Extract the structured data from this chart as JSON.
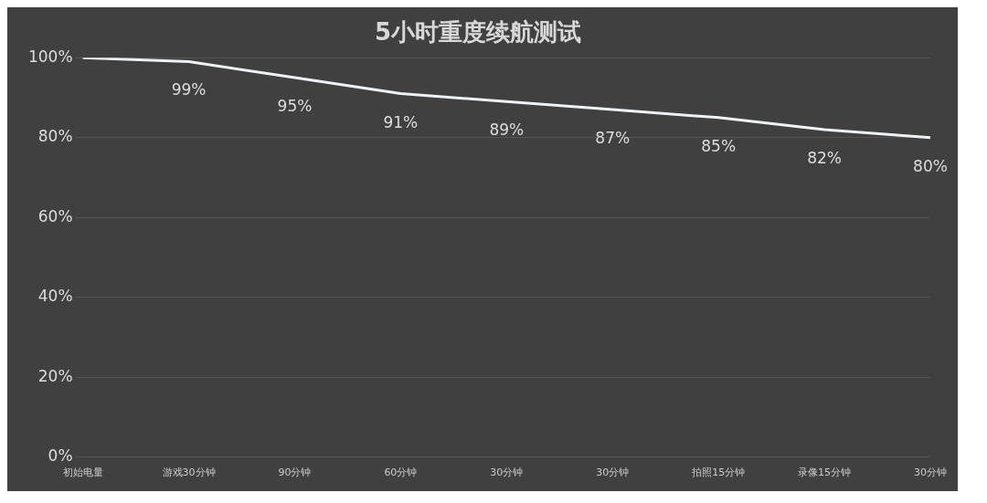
{
  "chart_data": {
    "type": "line",
    "title": "5小时重度续航测试",
    "categories": [
      "初始电量",
      "游戏30分钟",
      "90分钟",
      "60分钟",
      "30分钟",
      "30分钟",
      "拍照15分钟",
      "录像15分钟",
      "30分钟"
    ],
    "series": [
      {
        "color": "#eef3f8",
        "values": [
          100,
          99,
          95,
          91,
          89,
          87,
          85,
          82,
          80
        ],
        "value_labels": [
          null,
          "99%",
          "95%",
          "91%",
          "89%",
          "87%",
          "85%",
          "82%",
          "80%"
        ]
      }
    ],
    "ylim": [
      0,
      100
    ],
    "yticks": [
      {
        "value": 0,
        "label": "0%"
      },
      {
        "value": 20,
        "label": "20%"
      },
      {
        "value": 40,
        "label": "40%"
      },
      {
        "value": 60,
        "label": "60%"
      },
      {
        "value": 80,
        "label": "80%"
      },
      {
        "value": 100,
        "label": "100%"
      }
    ],
    "grid": "y",
    "legend": false,
    "marker": "none",
    "line_style": "solid"
  }
}
